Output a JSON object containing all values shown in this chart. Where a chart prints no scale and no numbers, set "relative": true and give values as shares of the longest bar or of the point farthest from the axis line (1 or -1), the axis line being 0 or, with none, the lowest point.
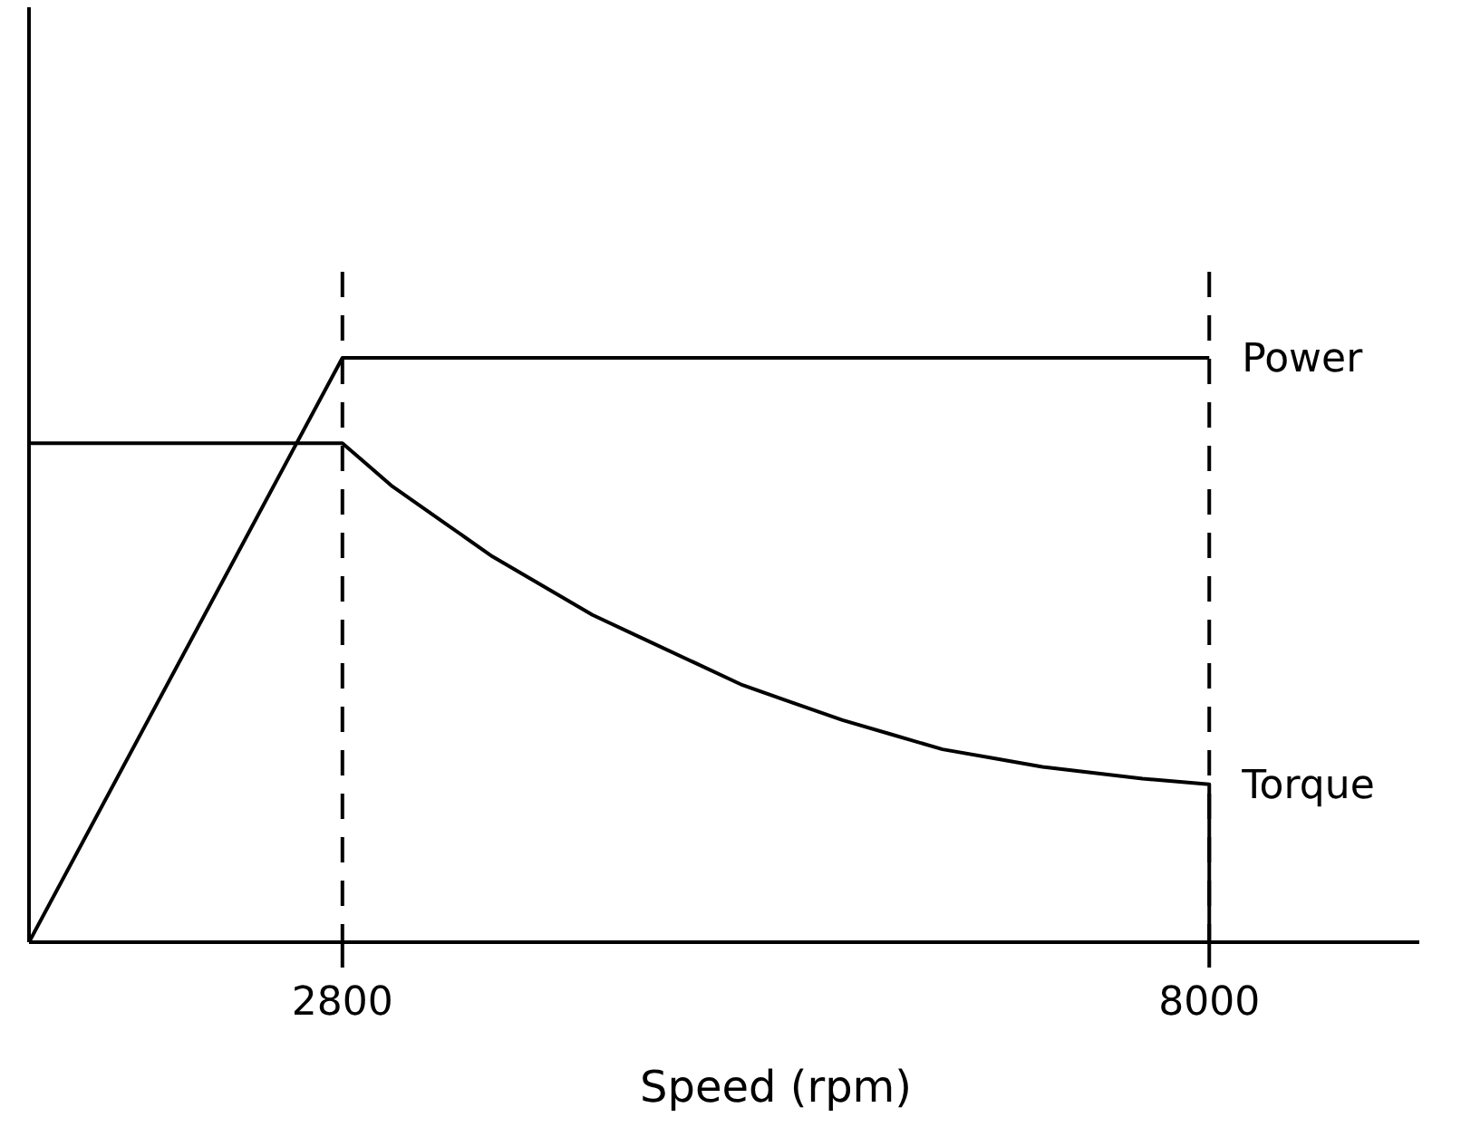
{
  "chart_data": {
    "type": "line",
    "relative": true,
    "xlabel": "Speed (rpm)",
    "xlim": [
      920,
      9260
    ],
    "xticks": [
      2800,
      8000
    ],
    "grid": false,
    "marker": "none",
    "line_style": "solid",
    "series": [
      {
        "name": "Power",
        "color": "#000000",
        "x": [
          920,
          2800,
          8000
        ],
        "values": [
          0,
          1,
          1
        ]
      },
      {
        "name": "Torque",
        "color": "#000000",
        "x": [
          920,
          2800,
          3100,
          3400,
          3700,
          4000,
          4300,
          4600,
          4900,
          5200,
          5500,
          5800,
          6100,
          6400,
          6700,
          7000,
          7300,
          7600,
          8000,
          8000
        ],
        "values": [
          0.854,
          0.854,
          0.78,
          0.72,
          0.66,
          0.61,
          0.56,
          0.52,
          0.48,
          0.44,
          0.41,
          0.38,
          0.355,
          0.33,
          0.315,
          0.3,
          0.29,
          0.28,
          0.27,
          0
        ]
      }
    ],
    "ref_lines": [
      {
        "axis": "x",
        "value": 2800,
        "label": null,
        "line_style": "dashed"
      },
      {
        "axis": "x",
        "value": 8000,
        "label": null,
        "line_style": "dashed"
      }
    ]
  }
}
